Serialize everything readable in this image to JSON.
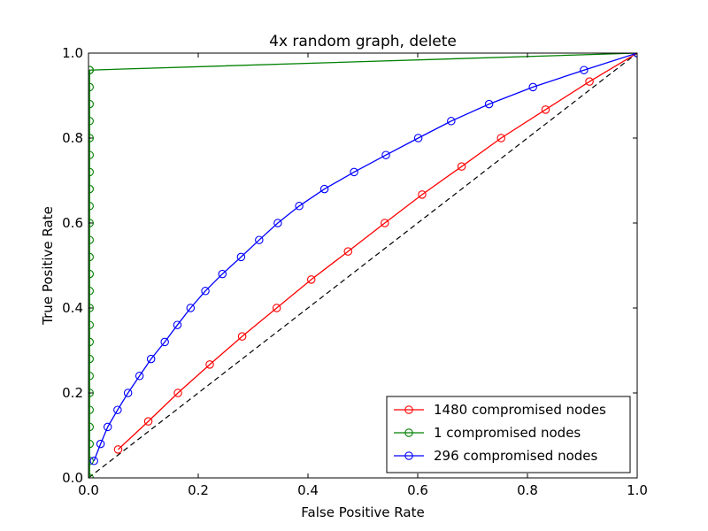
{
  "chart_data": {
    "type": "line",
    "title": "4x random graph, delete",
    "xlabel": "False Positive Rate",
    "ylabel": "True Positive Rate",
    "xlim": [
      0.0,
      1.0
    ],
    "ylim": [
      0.0,
      1.0
    ],
    "xticks": [
      "0.0",
      "0.2",
      "0.4",
      "0.6",
      "0.8",
      "1.0"
    ],
    "yticks": [
      "0.0",
      "0.2",
      "0.4",
      "0.6",
      "0.8",
      "1.0"
    ],
    "grid": false,
    "legend_position": "lower-right",
    "reference_line": {
      "x": [
        0,
        1
      ],
      "y": [
        0,
        1
      ],
      "color": "#000000",
      "style": "dashed"
    },
    "series": [
      {
        "name": "1480 compromised nodes",
        "color": "#ff0000",
        "x": [
          0.054,
          0.109,
          0.163,
          0.221,
          0.28,
          0.343,
          0.406,
          0.473,
          0.54,
          0.608,
          0.68,
          0.752,
          0.833,
          0.913,
          1.0
        ],
        "y": [
          0.067,
          0.133,
          0.2,
          0.267,
          0.333,
          0.4,
          0.467,
          0.533,
          0.6,
          0.667,
          0.733,
          0.8,
          0.867,
          0.933,
          1.0
        ]
      },
      {
        "name": "1 compromised nodes",
        "color": "#008000",
        "x": [
          0.002,
          0.002,
          0.002,
          0.002,
          0.002,
          0.002,
          0.002,
          0.002,
          0.002,
          0.002,
          0.002,
          0.002,
          0.002,
          0.002,
          0.002,
          0.002,
          0.002,
          0.002,
          0.002,
          0.002,
          0.002,
          0.002,
          0.002,
          0.002,
          0.002,
          0.002,
          1.0
        ],
        "y": [
          0.0,
          0.04,
          0.08,
          0.12,
          0.16,
          0.2,
          0.24,
          0.28,
          0.32,
          0.36,
          0.4,
          0.44,
          0.48,
          0.52,
          0.56,
          0.6,
          0.64,
          0.68,
          0.72,
          0.76,
          0.8,
          0.84,
          0.88,
          0.92,
          0.96,
          0.96,
          1.0
        ]
      },
      {
        "name": "296 compromised nodes",
        "color": "#0000ff",
        "x": [
          0.01,
          0.022,
          0.035,
          0.053,
          0.072,
          0.093,
          0.114,
          0.139,
          0.162,
          0.186,
          0.213,
          0.244,
          0.278,
          0.311,
          0.345,
          0.384,
          0.43,
          0.484,
          0.542,
          0.601,
          0.661,
          0.73,
          0.81,
          0.903,
          1.0
        ],
        "y": [
          0.04,
          0.08,
          0.12,
          0.16,
          0.2,
          0.24,
          0.28,
          0.32,
          0.36,
          0.4,
          0.44,
          0.48,
          0.52,
          0.56,
          0.6,
          0.64,
          0.68,
          0.72,
          0.76,
          0.8,
          0.84,
          0.88,
          0.92,
          0.96,
          1.0
        ]
      }
    ]
  }
}
